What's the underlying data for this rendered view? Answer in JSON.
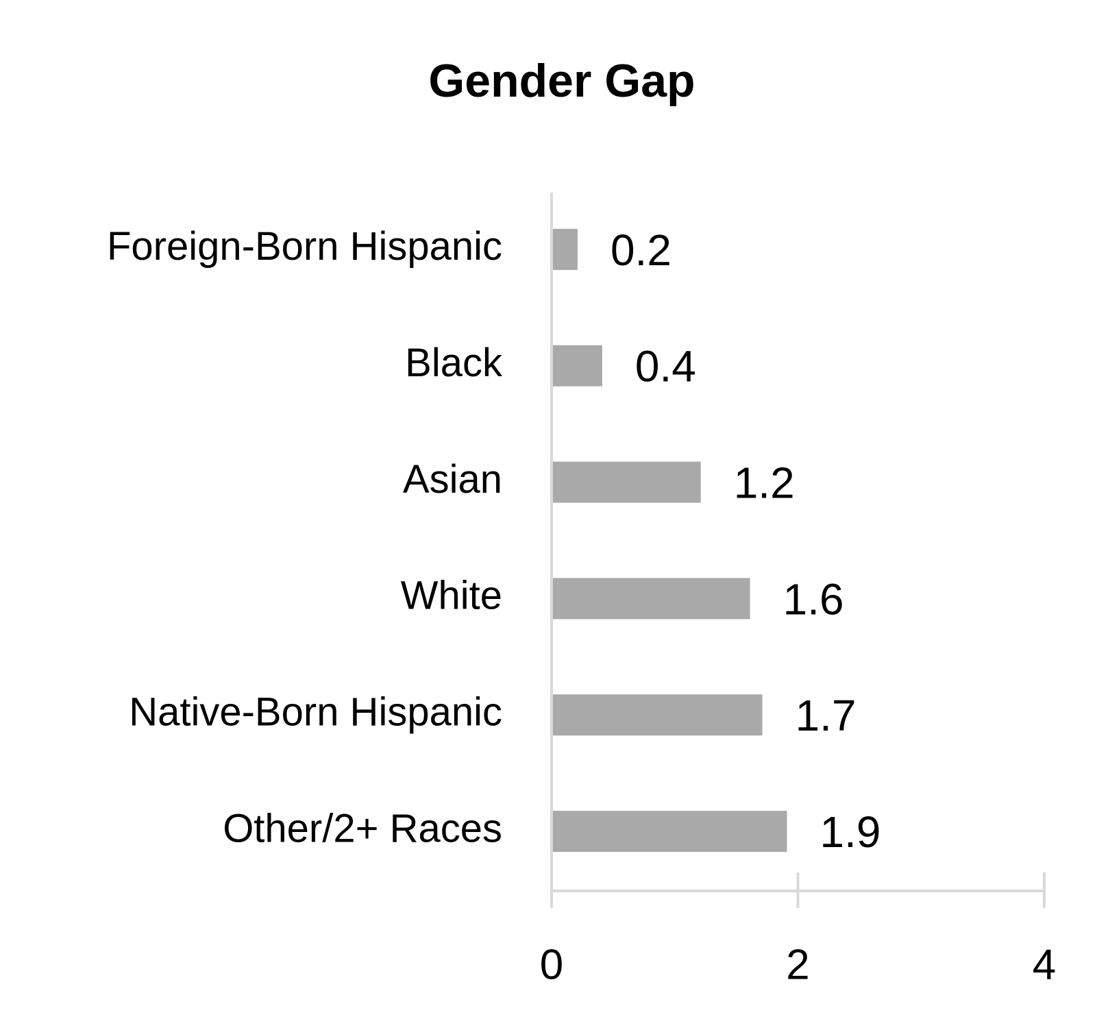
{
  "chart_data": {
    "type": "bar",
    "orientation": "horizontal",
    "title": "Gender Gap",
    "categories": [
      "Foreign-Born Hispanic",
      "Black",
      "Asian",
      "White",
      "Native-Born Hispanic",
      "Other/2+ Races"
    ],
    "values": [
      0.2,
      0.4,
      1.2,
      1.6,
      1.7,
      1.9
    ],
    "color": "#a9a9a9",
    "xlim": [
      0,
      4
    ],
    "xticks": [
      0,
      2,
      4
    ],
    "grid": false
  }
}
